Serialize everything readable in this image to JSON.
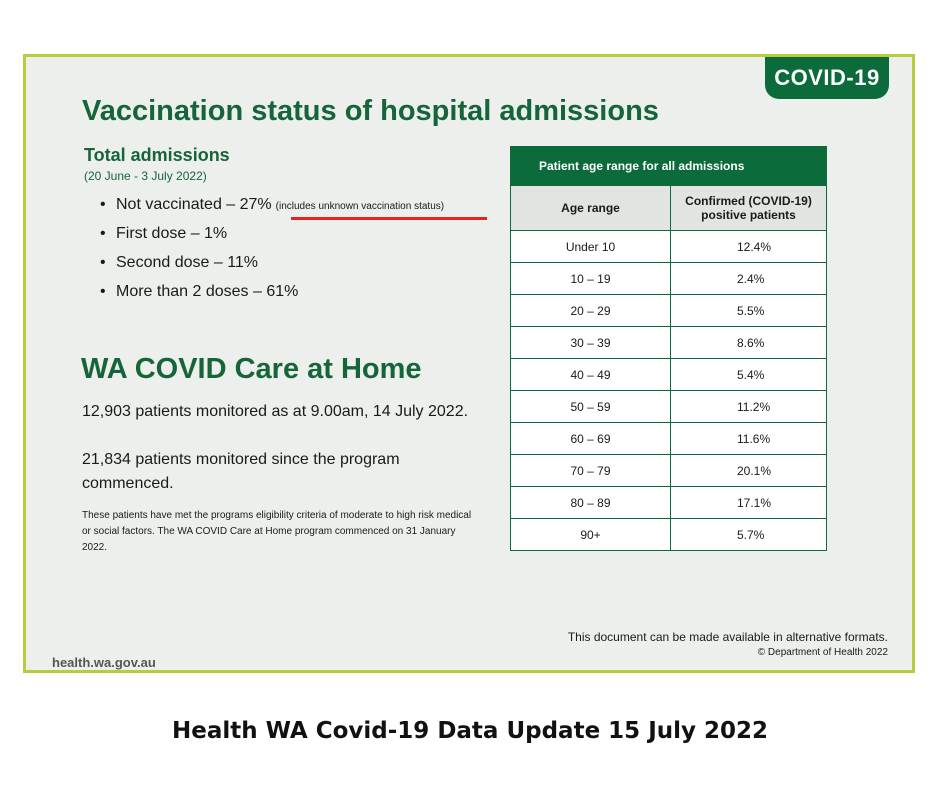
{
  "badge": "COVID-19",
  "title": "Vaccination status of hospital admissions",
  "total": {
    "heading": "Total admissions",
    "date": "(20 June - 3 July 2022)",
    "bullets": [
      {
        "text": "Not vaccinated – 27%",
        "note": "(includes unknown vaccination status)"
      },
      {
        "text": "First dose – 1%"
      },
      {
        "text": "Second dose – 11%"
      },
      {
        "text": "More than 2 doses – 61%"
      }
    ]
  },
  "care": {
    "heading": "WA COVID Care at Home",
    "p1": "12,903 patients monitored as at 9.00am, 14 July 2022.",
    "p2": "21,834 patients monitored since the program commenced.",
    "fine": "These patients have met the programs eligibility criteria of moderate to high risk medical or social factors. The WA COVID Care at Home program commenced on 31 January 2022."
  },
  "table": {
    "caption": "Patient age range for all admissions",
    "col1": "Age range",
    "col2": "Confirmed (COVID-19) positive patients",
    "rows": [
      {
        "age": "Under 10",
        "pct": "12.4%"
      },
      {
        "age": "10 – 19",
        "pct": "2.4%"
      },
      {
        "age": "20 – 29",
        "pct": "5.5%"
      },
      {
        "age": "30 – 39",
        "pct": "8.6%"
      },
      {
        "age": "40 – 49",
        "pct": "5.4%"
      },
      {
        "age": "50 – 59",
        "pct": "11.2%"
      },
      {
        "age": "60 – 69",
        "pct": "11.6%"
      },
      {
        "age": "70 – 79",
        "pct": "20.1%"
      },
      {
        "age": "80 – 89",
        "pct": "17.1%"
      },
      {
        "age": "90+",
        "pct": "5.7%"
      }
    ]
  },
  "footer": {
    "line1": "This document can be made available in alternative formats.",
    "line2": "© Department of Health 2022",
    "site": "health.wa.gov.au"
  },
  "caption": "Health WA Covid-19 Data Update 15 July 2022",
  "colors": {
    "green": "#16653a",
    "accent": "#b5cf3c",
    "underline": "#e8231f"
  }
}
